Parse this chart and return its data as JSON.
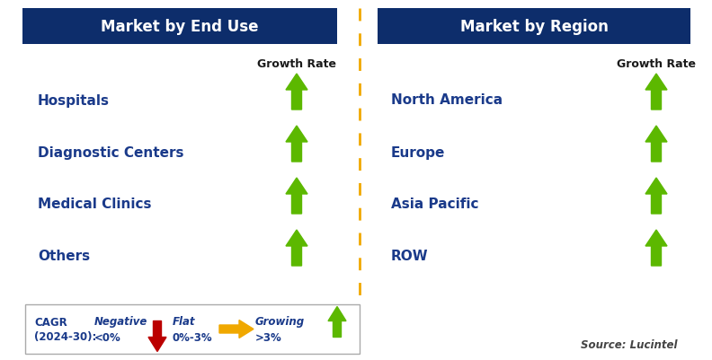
{
  "title_left": "Market by End Use",
  "title_right": "Market by Region",
  "title_bg_color": "#0d2d6b",
  "title_text_color": "#ffffff",
  "left_items": [
    "Hospitals",
    "Diagnostic Centers",
    "Medical Clinics",
    "Others"
  ],
  "right_items": [
    "North America",
    "Europe",
    "Asia Pacific",
    "ROW"
  ],
  "item_text_color": "#1a3a8a",
  "growth_rate_label": "Growth Rate",
  "growth_rate_color": "#1a1a1a",
  "arrow_up_color": "#5cb800",
  "arrow_down_color": "#bb0000",
  "arrow_flat_color": "#f0a800",
  "dashed_line_color": "#f0a800",
  "source_text": "Source: Lucintel",
  "bg_color": "#ffffff",
  "fig_w": 7.92,
  "fig_h": 4.02,
  "dpi": 100
}
